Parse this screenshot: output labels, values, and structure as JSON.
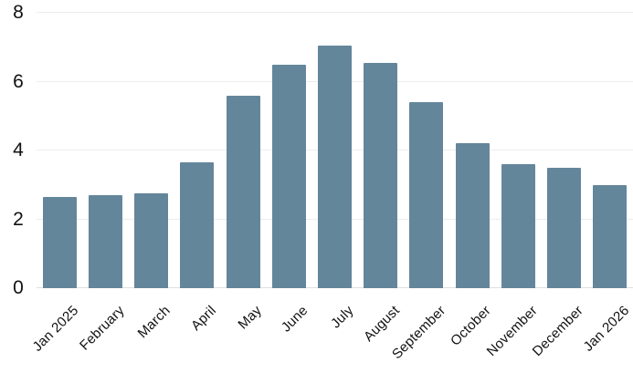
{
  "chart_data": {
    "type": "bar",
    "title": "",
    "xlabel": "",
    "ylabel": "",
    "categories": [
      "Jan 2025",
      "February",
      "March",
      "April",
      "May",
      "June",
      "July",
      "August",
      "September",
      "October",
      "November",
      "December",
      "Jan 2026"
    ],
    "values": [
      2.65,
      2.7,
      2.75,
      3.65,
      5.6,
      6.5,
      7.05,
      6.55,
      5.4,
      4.2,
      3.6,
      3.5,
      3.0
    ],
    "ylim": [
      0,
      8
    ],
    "yticks": [
      0,
      2,
      4,
      6,
      8
    ],
    "grid": true,
    "legend_position": "none",
    "x_label_rotation_deg": -45,
    "colors": {
      "bar": "#64869b",
      "gridline": "#ededed",
      "baseline": "#e0e0e0",
      "text": "#111111",
      "background": "#ffffff"
    }
  }
}
